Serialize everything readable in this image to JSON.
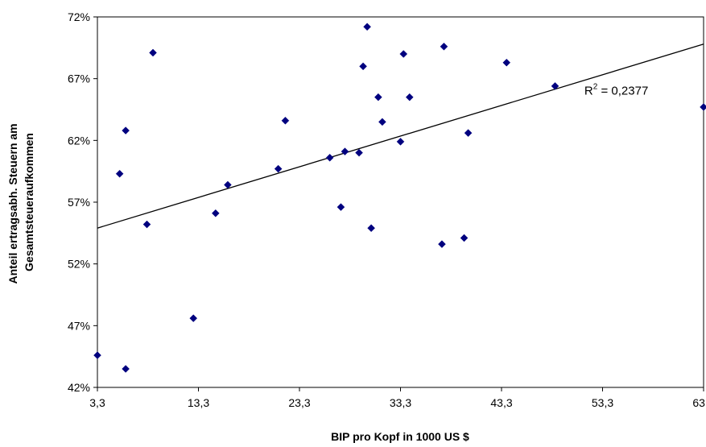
{
  "chart_data": {
    "type": "scatter",
    "xlabel": "BIP pro Kopf in 1000 US $",
    "ylabel_lines": [
      "Anteil ertragsabh. Steuern am",
      "Gesamtsteueraufkommen"
    ],
    "xlim": [
      3.3,
      63.3
    ],
    "ylim": [
      42,
      72
    ],
    "x_ticks": [
      3.3,
      13.3,
      23.3,
      33.3,
      43.3,
      53.3,
      63.3
    ],
    "x_tick_labels": [
      "3,3",
      "13,3",
      "23,3",
      "33,3",
      "43,3",
      "53,3",
      "63,3"
    ],
    "y_ticks": [
      42,
      47,
      52,
      57,
      62,
      67,
      72
    ],
    "y_tick_labels": [
      "42%",
      "47%",
      "52%",
      "57%",
      "62%",
      "67%",
      "72%"
    ],
    "marker_color": "#00007F",
    "grid": false,
    "legend": false,
    "points": [
      {
        "x": 3.3,
        "y": 44.6
      },
      {
        "x": 5.5,
        "y": 59.3
      },
      {
        "x": 6.1,
        "y": 62.8
      },
      {
        "x": 6.1,
        "y": 43.5
      },
      {
        "x": 8.2,
        "y": 55.2
      },
      {
        "x": 8.8,
        "y": 69.1
      },
      {
        "x": 12.8,
        "y": 47.6
      },
      {
        "x": 15.0,
        "y": 56.1
      },
      {
        "x": 16.2,
        "y": 58.4
      },
      {
        "x": 21.2,
        "y": 59.7
      },
      {
        "x": 21.9,
        "y": 63.6
      },
      {
        "x": 26.3,
        "y": 60.6
      },
      {
        "x": 27.4,
        "y": 56.6
      },
      {
        "x": 27.8,
        "y": 61.1
      },
      {
        "x": 29.2,
        "y": 61.0
      },
      {
        "x": 29.6,
        "y": 68.0
      },
      {
        "x": 30.0,
        "y": 71.2
      },
      {
        "x": 30.4,
        "y": 54.9
      },
      {
        "x": 31.1,
        "y": 65.5
      },
      {
        "x": 31.5,
        "y": 63.5
      },
      {
        "x": 33.3,
        "y": 61.9
      },
      {
        "x": 33.6,
        "y": 69.0
      },
      {
        "x": 34.2,
        "y": 65.5
      },
      {
        "x": 37.4,
        "y": 53.6
      },
      {
        "x": 37.6,
        "y": 69.6
      },
      {
        "x": 39.6,
        "y": 54.1
      },
      {
        "x": 40.0,
        "y": 62.6
      },
      {
        "x": 43.8,
        "y": 68.3
      },
      {
        "x": 48.6,
        "y": 66.4
      },
      {
        "x": 63.3,
        "y": 64.7
      }
    ],
    "trendline": {
      "x": [
        3.3,
        63.3
      ],
      "y": [
        54.9,
        69.8
      ]
    },
    "annotation": {
      "base": "R",
      "superscript": "2",
      "rest": " = 0,2377",
      "at": {
        "x": 51.5,
        "y": 65.7
      }
    }
  }
}
